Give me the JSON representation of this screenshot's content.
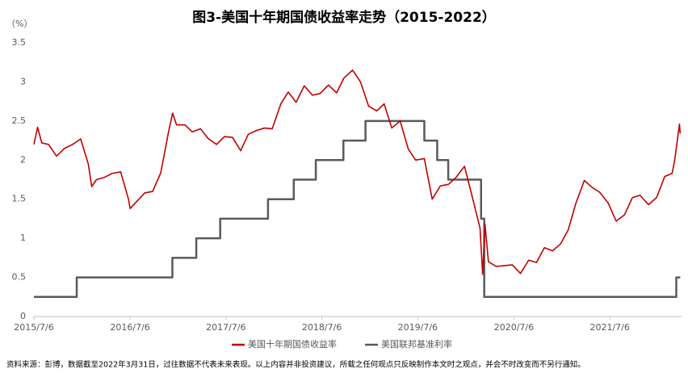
{
  "chart_data": {
    "type": "line",
    "title": "图3-美国十年期国债收益率走势（2015-2022）",
    "y_unit": "（%）",
    "xlim": [
      "2015-07-06",
      "2022-04-05"
    ],
    "xticks": [
      {
        "value": "2015-07-06",
        "label": "2015/7/6"
      },
      {
        "value": "2016-07-06",
        "label": "2016/7/6"
      },
      {
        "value": "2017-07-06",
        "label": "2017/7/6"
      },
      {
        "value": "2018-07-06",
        "label": "2018/7/6"
      },
      {
        "value": "2019-07-06",
        "label": "2019/7/6"
      },
      {
        "value": "2020-07-06",
        "label": "2020/7/6"
      },
      {
        "value": "2021-07-06",
        "label": "2021/7/6"
      }
    ],
    "ylim": [
      0,
      3.5
    ],
    "yticks": [
      0,
      0.5,
      1,
      1.5,
      2,
      2.5,
      3,
      3.5
    ],
    "grid": false,
    "legend": "bottom",
    "series": [
      {
        "name": "美国十年期国债收益率",
        "color": "#c00000",
        "x": [
          "2015-07-06",
          "2015-07-20",
          "2015-08-05",
          "2015-08-31",
          "2015-09-30",
          "2015-10-30",
          "2015-11-30",
          "2015-12-31",
          "2016-01-29",
          "2016-02-11",
          "2016-02-29",
          "2016-03-31",
          "2016-04-29",
          "2016-05-31",
          "2016-06-30",
          "2016-07-06",
          "2016-08-31",
          "2016-09-30",
          "2016-10-31",
          "2016-11-30",
          "2016-12-15",
          "2016-12-30",
          "2017-01-31",
          "2017-02-28",
          "2017-03-31",
          "2017-04-28",
          "2017-05-31",
          "2017-06-30",
          "2017-07-31",
          "2017-08-31",
          "2017-09-29",
          "2017-10-31",
          "2017-11-30",
          "2017-12-29",
          "2018-01-31",
          "2018-02-28",
          "2018-03-30",
          "2018-04-30",
          "2018-05-31",
          "2018-06-29",
          "2018-07-31",
          "2018-08-31",
          "2018-09-28",
          "2018-10-31",
          "2018-11-30",
          "2018-12-31",
          "2019-01-31",
          "2019-02-28",
          "2019-03-29",
          "2019-04-30",
          "2019-05-31",
          "2019-06-28",
          "2019-07-31",
          "2019-08-30",
          "2019-09-30",
          "2019-10-31",
          "2019-11-29",
          "2019-12-31",
          "2020-01-31",
          "2020-02-28",
          "2020-03-09",
          "2020-03-18",
          "2020-03-31",
          "2020-04-30",
          "2020-05-29",
          "2020-06-30",
          "2020-07-31",
          "2020-08-31",
          "2020-09-30",
          "2020-10-30",
          "2020-11-30",
          "2020-12-31",
          "2021-01-29",
          "2021-02-26",
          "2021-03-31",
          "2021-04-30",
          "2021-05-28",
          "2021-06-30",
          "2021-07-30",
          "2021-08-31",
          "2021-09-30",
          "2021-10-29",
          "2021-11-30",
          "2021-12-31",
          "2022-01-31",
          "2022-02-28",
          "2022-03-10",
          "2022-03-28",
          "2022-03-31"
        ],
        "values": [
          2.2,
          2.42,
          2.22,
          2.2,
          2.05,
          2.15,
          2.2,
          2.27,
          1.95,
          1.66,
          1.75,
          1.78,
          1.83,
          1.85,
          1.5,
          1.38,
          1.58,
          1.6,
          1.84,
          2.37,
          2.6,
          2.45,
          2.45,
          2.36,
          2.4,
          2.28,
          2.2,
          2.3,
          2.29,
          2.12,
          2.33,
          2.38,
          2.41,
          2.4,
          2.72,
          2.87,
          2.74,
          2.95,
          2.83,
          2.85,
          2.96,
          2.86,
          3.05,
          3.15,
          3.0,
          2.69,
          2.63,
          2.72,
          2.41,
          2.5,
          2.14,
          2.0,
          2.02,
          1.5,
          1.67,
          1.69,
          1.78,
          1.92,
          1.51,
          1.13,
          0.54,
          1.18,
          0.7,
          0.64,
          0.65,
          0.66,
          0.55,
          0.72,
          0.69,
          0.88,
          0.84,
          0.93,
          1.11,
          1.44,
          1.74,
          1.65,
          1.59,
          1.45,
          1.22,
          1.3,
          1.52,
          1.55,
          1.43,
          1.52,
          1.79,
          1.83,
          2.0,
          2.46,
          2.34
        ]
      },
      {
        "name": "美国联邦基准利率",
        "color": "#5a5a5a",
        "x": [
          "2015-07-06",
          "2015-12-16",
          "2015-12-16",
          "2016-12-14",
          "2016-12-14",
          "2017-03-15",
          "2017-03-15",
          "2017-06-14",
          "2017-06-14",
          "2017-12-13",
          "2017-12-13",
          "2018-03-21",
          "2018-03-21",
          "2018-06-13",
          "2018-06-13",
          "2018-09-26",
          "2018-09-26",
          "2018-12-19",
          "2018-12-19",
          "2019-07-31",
          "2019-07-31",
          "2019-09-18",
          "2019-09-18",
          "2019-10-30",
          "2019-10-30",
          "2020-03-03",
          "2020-03-03",
          "2020-03-15",
          "2020-03-15",
          "2022-03-16",
          "2022-03-16",
          "2022-03-31"
        ],
        "values": [
          0.25,
          0.25,
          0.5,
          0.5,
          0.75,
          0.75,
          1,
          1,
          1.25,
          1.25,
          1.5,
          1.5,
          1.75,
          1.75,
          2,
          2,
          2.25,
          2.25,
          2.5,
          2.5,
          2.25,
          2.25,
          2,
          2,
          1.75,
          1.75,
          1.25,
          1.25,
          0.25,
          0.25,
          0.5,
          0.5
        ]
      }
    ],
    "source_note": "资料来源：彭博，数据截至2022年3月31日，过往数据不代表未来表现。以上内容并非投资建议，所载之任何观点只反映制作本文时之观点，并会不时改变而不另行通知。"
  }
}
